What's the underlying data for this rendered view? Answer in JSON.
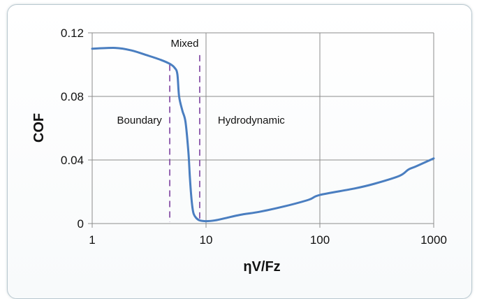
{
  "chart_data": {
    "type": "line",
    "x_scale": "log",
    "xlabel": "ηV/Fz",
    "ylabel": "COF",
    "xlim": [
      1,
      1000
    ],
    "ylim": [
      0,
      0.12
    ],
    "x_ticks": [
      1,
      10,
      100,
      1000
    ],
    "x_tick_labels": [
      "1",
      "10",
      "100",
      "1000"
    ],
    "y_ticks": [
      0,
      0.04,
      0.08,
      0.12
    ],
    "y_tick_labels": [
      "0",
      "0.04",
      "0.08",
      "0.12"
    ],
    "grid": true,
    "line_color": "#4a7ec0",
    "divider_color": "#7b3f9e",
    "series": [
      {
        "x": [
          1,
          1.6,
          2.2,
          3,
          4,
          4.8,
          5.3,
          5.6,
          5.8,
          6.2,
          6.6,
          7.0,
          7.2,
          7.4,
          7.6,
          7.8,
          8.2,
          8.8,
          10,
          12,
          15,
          20,
          30,
          50,
          80,
          100,
          200,
          300,
          500,
          600,
          700,
          1000
        ],
        "y": [
          0.11,
          0.1105,
          0.109,
          0.106,
          0.103,
          0.1005,
          0.098,
          0.094,
          0.08,
          0.071,
          0.064,
          0.045,
          0.03,
          0.018,
          0.01,
          0.006,
          0.0035,
          0.002,
          0.0015,
          0.002,
          0.0035,
          0.0055,
          0.0075,
          0.011,
          0.015,
          0.018,
          0.022,
          0.025,
          0.03,
          0.034,
          0.036,
          0.041
        ]
      }
    ],
    "dividers": [
      {
        "x": 4.8,
        "y_from": 0.001,
        "y_to": 0.1
      },
      {
        "x": 8.8,
        "y_from": 0.001,
        "y_to": 0.106
      }
    ],
    "annotations": [
      {
        "text": "Mixed",
        "x": 6.5,
        "y": 0.1135
      },
      {
        "text": "Boundary",
        "x": 2.6,
        "y": 0.065
      },
      {
        "text": "Hydrodynamic",
        "x": 25,
        "y": 0.065
      }
    ]
  }
}
